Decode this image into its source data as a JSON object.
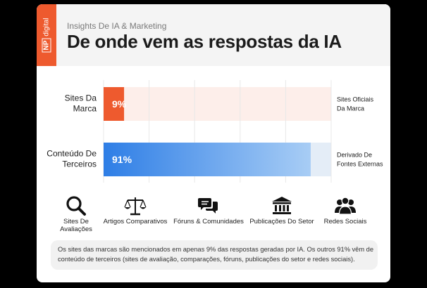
{
  "header": {
    "brand_np": "NP",
    "brand_digital": "digital",
    "subtitle": "Insights De IA & Marketing",
    "title": "De onde vem as respostas da IA"
  },
  "chart_data": {
    "type": "bar",
    "orientation": "horizontal",
    "title": "De onde vem as respostas da IA",
    "xlim": [
      0,
      100
    ],
    "grid": true,
    "categories": [
      "Sites Da Marca",
      "Conteúdo De Terceiros"
    ],
    "category_lines": [
      [
        "Sites Da",
        "Marca"
      ],
      [
        "Conteúdo De",
        "Terceiros"
      ]
    ],
    "values": [
      9,
      91
    ],
    "value_labels": [
      "9%",
      "91%"
    ],
    "right_labels": [
      [
        "Sites Oficiais",
        "Da Marca"
      ],
      [
        "Derivado De",
        "Fontes Externas"
      ]
    ],
    "colors": {
      "bar1": "#ee5a2e",
      "bar1_track": "#fdeeea",
      "bar2_start": "#2e7ee6",
      "bar2_end": "#a8cdf5",
      "bar2_track": "#e4edf7",
      "grid": "#e8e8e8"
    }
  },
  "icons": [
    {
      "icon": "magnifier-icon",
      "lines": [
        "Sites De",
        "Avaliações"
      ]
    },
    {
      "icon": "scales-icon",
      "lines": [
        "Artigos Comparativos"
      ]
    },
    {
      "icon": "chat-bubbles-icon",
      "lines": [
        "Fóruns & Comunidades"
      ]
    },
    {
      "icon": "institution-icon",
      "lines": [
        "Publicações Do Setor"
      ]
    },
    {
      "icon": "people-icon",
      "lines": [
        "Redes Sociais"
      ]
    }
  ],
  "note": {
    "line1": "Os sites das marcas são mencionados em apenas 9% das respostas geradas por IA. Os outros 91% vêm de",
    "line2": "conteúdo de terceiros (sites de avaliação, comparações, fóruns, publicações do setor e redes sociais)."
  }
}
